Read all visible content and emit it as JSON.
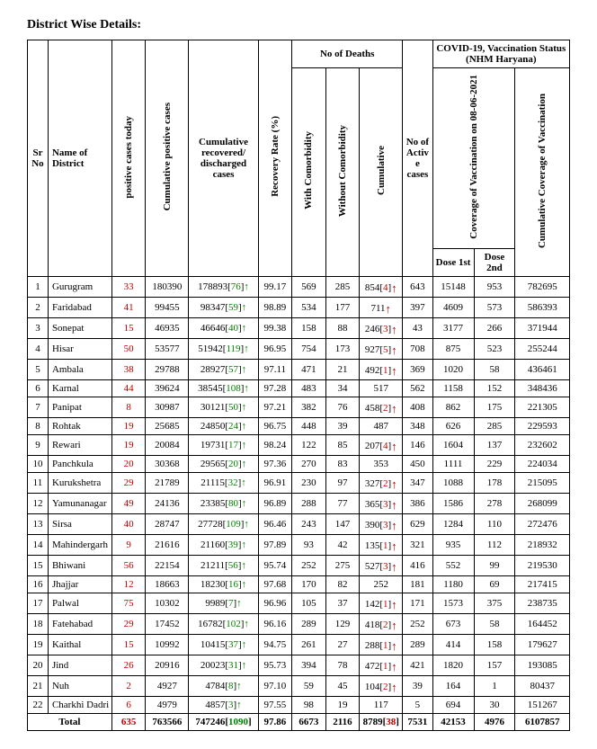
{
  "title": "District Wise Details:",
  "headers": {
    "sr": "Sr No",
    "district": "Name of District",
    "pos_today": "positive cases today",
    "cum_pos": "Cumulative positive cases",
    "cum_rec": "Cumulative recovered/ discharged cases",
    "rec_rate": "Recovery Rate (%)",
    "deaths": "No of Deaths",
    "with_com": "With Comorbidity",
    "without_com": "Without Comorbidity",
    "cum_deaths": "Cumulative",
    "active": "No of Active cases",
    "vacc": "COVID-19, Vaccination Status (NHM Haryana)",
    "cov_on": "Coverage of Vaccination on 08-06-2021",
    "dose1": "Dose 1st",
    "dose2": "Dose 2nd",
    "cum_cov": "Cumulative Coverage of Vaccination"
  },
  "rows": [
    {
      "sr": 1,
      "d": "Gurugram",
      "pt": "33",
      "cp": "180390",
      "rec": "178893",
      "recd": "76",
      "rr": "99.17",
      "wc": "569",
      "woc": "285",
      "cd": "854",
      "cdd": "4",
      "cda": true,
      "ac": "643",
      "d1": "15148",
      "d2": "953",
      "cc": "782695"
    },
    {
      "sr": 2,
      "d": "Faridabad",
      "pt": "41",
      "cp": "99455",
      "rec": "98347",
      "recd": "59",
      "rr": "98.89",
      "wc": "534",
      "woc": "177",
      "cd": "711",
      "cdd": "",
      "cda": true,
      "ac": "397",
      "d1": "4609",
      "d2": "573",
      "cc": "586393"
    },
    {
      "sr": 3,
      "d": "Sonepat",
      "pt": "15",
      "cp": "46935",
      "rec": "46646",
      "recd": "40",
      "rr": "99.38",
      "wc": "158",
      "woc": "88",
      "cd": "246",
      "cdd": "3",
      "cda": true,
      "ac": "43",
      "d1": "3177",
      "d2": "266",
      "cc": "371944"
    },
    {
      "sr": 4,
      "d": "Hisar",
      "pt": "50",
      "cp": "53577",
      "rec": "51942",
      "recd": "119",
      "rr": "96.95",
      "wc": "754",
      "woc": "173",
      "cd": "927",
      "cdd": "5",
      "cda": true,
      "ac": "708",
      "d1": "875",
      "d2": "523",
      "cc": "255244"
    },
    {
      "sr": 5,
      "d": "Ambala",
      "pt": "38",
      "cp": "29788",
      "rec": "28927",
      "recd": "57",
      "rr": "97.11",
      "wc": "471",
      "woc": "21",
      "cd": "492",
      "cdd": "1",
      "cda": true,
      "ac": "369",
      "d1": "1020",
      "d2": "58",
      "cc": "436461"
    },
    {
      "sr": 6,
      "d": "Karnal",
      "pt": "44",
      "cp": "39624",
      "rec": "38545",
      "recd": "108",
      "rr": "97.28",
      "wc": "483",
      "woc": "34",
      "cd": "517",
      "cdd": "",
      "cda": false,
      "ac": "562",
      "d1": "1158",
      "d2": "152",
      "cc": "348436"
    },
    {
      "sr": 7,
      "d": "Panipat",
      "pt": "8",
      "cp": "30987",
      "rec": "30121",
      "recd": "50",
      "rr": "97.21",
      "wc": "382",
      "woc": "76",
      "cd": "458",
      "cdd": "2",
      "cda": true,
      "ac": "408",
      "d1": "862",
      "d2": "175",
      "cc": "221305"
    },
    {
      "sr": 8,
      "d": "Rohtak",
      "pt": "19",
      "cp": "25685",
      "rec": "24850",
      "recd": "24",
      "rr": "96.75",
      "wc": "448",
      "woc": "39",
      "cd": "487",
      "cdd": "",
      "cda": false,
      "ac": "348",
      "d1": "626",
      "d2": "285",
      "cc": "229593"
    },
    {
      "sr": 9,
      "d": "Rewari",
      "pt": "19",
      "cp": "20084",
      "rec": "19731",
      "recd": "17",
      "rr": "98.24",
      "wc": "122",
      "woc": "85",
      "cd": "207",
      "cdd": "4",
      "cda": true,
      "ac": "146",
      "d1": "1604",
      "d2": "137",
      "cc": "232602"
    },
    {
      "sr": 10,
      "d": "Panchkula",
      "pt": "20",
      "cp": "30368",
      "rec": "29565",
      "recd": "20",
      "rr": "97.36",
      "wc": "270",
      "woc": "83",
      "cd": "353",
      "cdd": "",
      "cda": false,
      "ac": "450",
      "d1": "1111",
      "d2": "229",
      "cc": "224034"
    },
    {
      "sr": 11,
      "d": "Kurukshetra",
      "pt": "29",
      "cp": "21789",
      "rec": "21115",
      "recd": "32",
      "rr": "96.91",
      "wc": "230",
      "woc": "97",
      "cd": "327",
      "cdd": "2",
      "cda": true,
      "ac": "347",
      "d1": "1088",
      "d2": "178",
      "cc": "215095"
    },
    {
      "sr": 12,
      "d": "Yamunanagar",
      "pt": "49",
      "cp": "24136",
      "rec": "23385",
      "recd": "80",
      "rr": "96.89",
      "wc": "288",
      "woc": "77",
      "cd": "365",
      "cdd": "3",
      "cda": true,
      "ac": "386",
      "d1": "1586",
      "d2": "278",
      "cc": "268099"
    },
    {
      "sr": 13,
      "d": "Sirsa",
      "pt": "40",
      "cp": "28747",
      "rec": "27728",
      "recd": "109",
      "rr": "96.46",
      "wc": "243",
      "woc": "147",
      "cd": "390",
      "cdd": "3",
      "cda": true,
      "ac": "629",
      "d1": "1284",
      "d2": "110",
      "cc": "272476"
    },
    {
      "sr": 14,
      "d": "Mahindergarh",
      "pt": "9",
      "cp": "21616",
      "rec": "21160",
      "recd": "39",
      "rr": "97.89",
      "wc": "93",
      "woc": "42",
      "cd": "135",
      "cdd": "1",
      "cda": true,
      "ac": "321",
      "d1": "935",
      "d2": "112",
      "cc": "218932"
    },
    {
      "sr": 15,
      "d": "Bhiwani",
      "pt": "56",
      "cp": "22154",
      "rec": "21211",
      "recd": "56",
      "rr": "95.74",
      "wc": "252",
      "woc": "275",
      "cd": "527",
      "cdd": "3",
      "cda": true,
      "ac": "416",
      "d1": "552",
      "d2": "99",
      "cc": "219530"
    },
    {
      "sr": 16,
      "d": "Jhajjar",
      "pt": "12",
      "cp": "18663",
      "rec": "18230",
      "recd": "16",
      "rr": "97.68",
      "wc": "170",
      "woc": "82",
      "cd": "252",
      "cdd": "",
      "cda": false,
      "ac": "181",
      "d1": "1180",
      "d2": "69",
      "cc": "217415"
    },
    {
      "sr": 17,
      "d": "Palwal",
      "pt": "75",
      "cp": "10302",
      "rec": "9989",
      "recd": "7",
      "rr": "96.96",
      "wc": "105",
      "woc": "37",
      "cd": "142",
      "cdd": "1",
      "cda": true,
      "ac": "171",
      "d1": "1573",
      "d2": "375",
      "cc": "238735"
    },
    {
      "sr": 18,
      "d": "Fatehabad",
      "pt": "29",
      "cp": "17452",
      "rec": "16782",
      "recd": "102",
      "rr": "96.16",
      "wc": "289",
      "woc": "129",
      "cd": "418",
      "cdd": "2",
      "cda": true,
      "ac": "252",
      "d1": "673",
      "d2": "58",
      "cc": "164452"
    },
    {
      "sr": 19,
      "d": "Kaithal",
      "pt": "15",
      "cp": "10992",
      "rec": "10415",
      "recd": "37",
      "rr": "94.75",
      "wc": "261",
      "woc": "27",
      "cd": "288",
      "cdd": "1",
      "cda": true,
      "ac": "289",
      "d1": "414",
      "d2": "158",
      "cc": "179627"
    },
    {
      "sr": 20,
      "d": "Jind",
      "pt": "26",
      "cp": "20916",
      "rec": "20023",
      "recd": "31",
      "rr": "95.73",
      "wc": "394",
      "woc": "78",
      "cd": "472",
      "cdd": "1",
      "cda": true,
      "ac": "421",
      "d1": "1820",
      "d2": "157",
      "cc": "193085"
    },
    {
      "sr": 21,
      "d": "Nuh",
      "pt": "2",
      "cp": "4927",
      "rec": "4784",
      "recd": "8",
      "rr": "97.10",
      "wc": "59",
      "woc": "45",
      "cd": "104",
      "cdd": "2",
      "cda": true,
      "ac": "39",
      "d1": "164",
      "d2": "1",
      "cc": "80437"
    },
    {
      "sr": 22,
      "d": "Charkhi Dadri",
      "pt": "6",
      "cp": "4979",
      "rec": "4857",
      "recd": "3",
      "rr": "97.55",
      "wc": "98",
      "woc": "19",
      "cd": "117",
      "cdd": "",
      "cda": false,
      "ac": "5",
      "d1": "694",
      "d2": "30",
      "cc": "151267"
    }
  ],
  "total": {
    "label": "Total",
    "pt": "635",
    "cp": "763566",
    "rec": "747246",
    "recd": "1090",
    "rr": "97.86",
    "wc": "6673",
    "woc": "2116",
    "cd": "8789",
    "cdd": "38",
    "ac": "7531",
    "d1": "42153",
    "d2": "4976",
    "cc": "6107857"
  }
}
